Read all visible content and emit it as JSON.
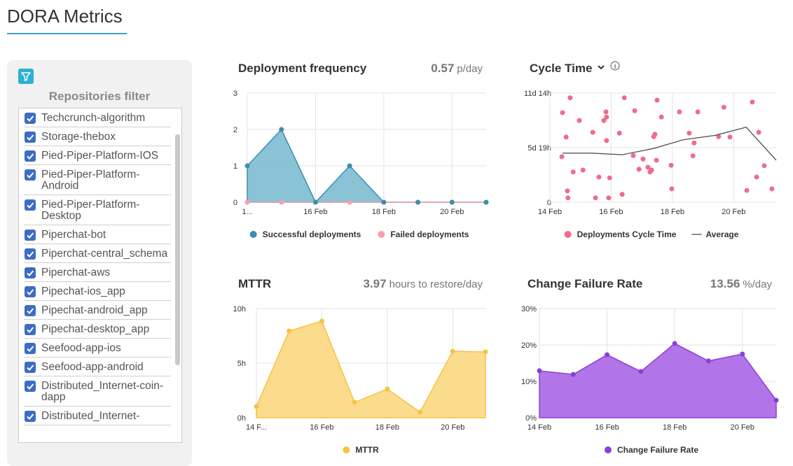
{
  "header": {
    "title": "DORA Metrics"
  },
  "filter": {
    "title": "Repositories filter",
    "repositories": [
      {
        "name": "Techcrunch-algorithm",
        "checked": true
      },
      {
        "name": "Storage-thebox",
        "checked": true
      },
      {
        "name": "Pied-Piper-Platform-IOS",
        "checked": true
      },
      {
        "name": "Pied-Piper-Platform-Android",
        "checked": true
      },
      {
        "name": "Pied-Piper-Platform-Desktop",
        "checked": true
      },
      {
        "name": "Piperchat-bot",
        "checked": true
      },
      {
        "name": "Piperchat-central_schema",
        "checked": true
      },
      {
        "name": "Piperchat-aws",
        "checked": true
      },
      {
        "name": "Pipechat-ios_app",
        "checked": true
      },
      {
        "name": "Pipechat-android_app",
        "checked": true
      },
      {
        "name": "Pipechat-desktop_app",
        "checked": true
      },
      {
        "name": "Seefood-app-ios",
        "checked": true
      },
      {
        "name": "Seefood-app-android",
        "checked": true
      },
      {
        "name": "Distributed_Internet-coin-dapp",
        "checked": true
      },
      {
        "name": "Distributed_Internet-",
        "checked": true
      }
    ]
  },
  "chart_data": [
    {
      "type": "area",
      "title": "Deployment frequency",
      "headline": {
        "value": 0.57,
        "unit": "p/day"
      },
      "categories": [
        "1...",
        null,
        "16 Feb",
        null,
        "18 Feb",
        null,
        "20 Feb",
        null
      ],
      "series": [
        {
          "name": "Successful deployments",
          "color": "#3a8fae",
          "fill": "#7dbdd0",
          "values": [
            1,
            2,
            0,
            1,
            0,
            0,
            0,
            0
          ]
        },
        {
          "name": "Failed deployments",
          "color": "#f59fb0",
          "fill": "#f59fb0",
          "values": [
            0,
            0,
            0,
            0,
            0,
            0,
            0,
            0
          ]
        }
      ],
      "ylim": [
        0,
        3
      ],
      "yticks": [
        0,
        1,
        2,
        3
      ],
      "grid": true
    },
    {
      "type": "scatter",
      "title": "Cycle Time",
      "series": [
        {
          "name": "Deployments Cycle Time",
          "color": "#f06b8a",
          "x": [
            14.41,
            14.66,
            14.39,
            14.53,
            14.57,
            14.59,
            14.76,
            14.96,
            15.08,
            15.4,
            15.6,
            15.49,
            15.76,
            15.83,
            15.85,
            15.85,
            15.92,
            15.95,
            16.27,
            16.36,
            16.43,
            16.72,
            16.77,
            16.91,
            17.04,
            17.2,
            17.27,
            17.32,
            17.39,
            17.43,
            17.5,
            17.48,
            17.64,
            17.96,
            17.98,
            18.23,
            18.55,
            18.67,
            18.71,
            18.83,
            19.51,
            19.68,
            19.88,
            20.43,
            20.61,
            20.75,
            20.82,
            21.0,
            21.25
          ],
          "values": [
            228,
            266,
            116,
            166,
            29,
            11,
            77,
            208,
            82,
            178,
            64,
            11,
            208,
            230,
            217,
            157,
            11,
            62,
            176,
            20,
            266,
            119,
            233,
            84,
            110,
            89,
            77,
            82,
            167,
            173,
            260,
            107,
            217,
            94,
            34,
            230,
            176,
            118,
            151,
            230,
            167,
            242,
            166,
            30,
            255,
            64,
            178,
            93,
            34
          ]
        },
        {
          "name": "Average",
          "type": "line",
          "color": "#444444",
          "x": [
            14.41,
            15.37,
            16.36,
            17.39,
            18.35,
            19.38,
            20.41,
            21.39
          ],
          "values": [
            125,
            125,
            121,
            137,
            159,
            170,
            191,
            107
          ]
        }
      ],
      "xlim": [
        14,
        21.39
      ],
      "xticks": [
        {
          "value": 14,
          "label": "14 Feb"
        },
        {
          "value": 16,
          "label": "16 Feb"
        },
        {
          "value": 18,
          "label": "18 Feb"
        },
        {
          "value": 20,
          "label": "20 Feb"
        }
      ],
      "ylim": [
        0,
        278
      ],
      "yticks": [
        0,
        {
          "value": 139,
          "label": "5d 19h"
        },
        {
          "value": 278,
          "label": "11d 14h"
        }
      ],
      "grid": true
    },
    {
      "type": "area",
      "title": "MTTR",
      "headline": {
        "value": 3.97,
        "unit": "hours to restore/day"
      },
      "categories": [
        "14 F...",
        null,
        "16 Feb",
        null,
        "18 Feb",
        null,
        "20 Feb",
        null
      ],
      "series": [
        {
          "name": "MTTR",
          "color": "#f5c342",
          "fill": "#fbd77f",
          "values": [
            1.03,
            7.95,
            8.85,
            1.41,
            2.63,
            0.51,
            6.09,
            6.03
          ]
        }
      ],
      "ylim": [
        0,
        10
      ],
      "yticks": [
        {
          "value": 0,
          "label": "0h"
        },
        {
          "value": 5,
          "label": "5h"
        },
        {
          "value": 10,
          "label": "10h"
        }
      ],
      "grid": true
    },
    {
      "type": "area",
      "title": "Change Failure Rate",
      "headline": {
        "value": 13.56,
        "unit": "%/day"
      },
      "categories": [
        "14 Feb",
        null,
        "16 Feb",
        null,
        "18 Feb",
        null,
        "20 Feb",
        null
      ],
      "series": [
        {
          "name": "Change Failure Rate",
          "color": "#8a3fd8",
          "fill": "#aa66e6",
          "values": [
            12.9,
            11.9,
            17.3,
            12.7,
            20.4,
            15.6,
            17.5,
            4.8
          ]
        }
      ],
      "ylim": [
        0,
        30
      ],
      "yticks": [
        {
          "value": 0,
          "label": "0%"
        },
        {
          "value": 10,
          "label": "10%"
        },
        {
          "value": 20,
          "label": "20%"
        },
        {
          "value": 30,
          "label": "30%"
        }
      ],
      "grid": true
    }
  ]
}
